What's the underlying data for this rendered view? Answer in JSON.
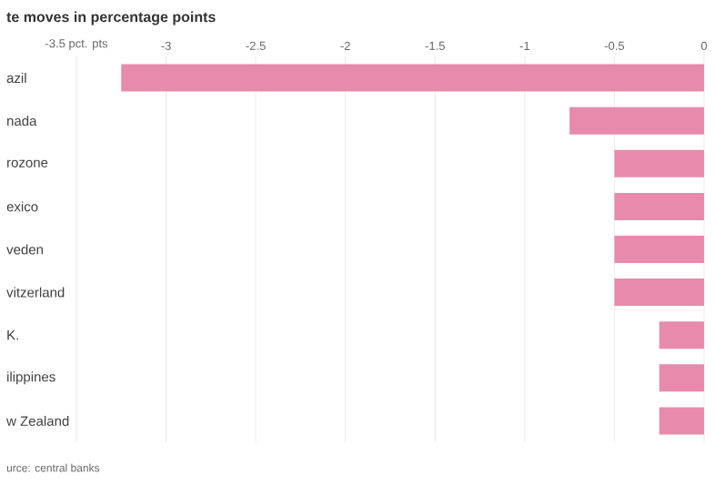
{
  "chart_data": {
    "type": "bar",
    "orientation": "horizontal",
    "title": "te moves in percentage points",
    "categories": [
      "azil",
      "nada",
      "rozone",
      "exico",
      "veden",
      "vitzerland",
      "K.",
      "ilippines",
      "w Zealand"
    ],
    "values": [
      -3.25,
      -0.75,
      -0.5,
      -0.5,
      -0.5,
      -0.5,
      -0.25,
      -0.25,
      -0.25
    ],
    "color": "#e88aab",
    "xlim": [
      -3.5,
      0
    ],
    "xticks": [
      {
        "value": -3.5,
        "label": "-3.5 pct. pts"
      },
      -3,
      -2.5,
      -2,
      -1.5,
      -1,
      -0.5,
      0
    ],
    "grid": "x",
    "annotations": [
      "urce: central banks"
    ]
  }
}
